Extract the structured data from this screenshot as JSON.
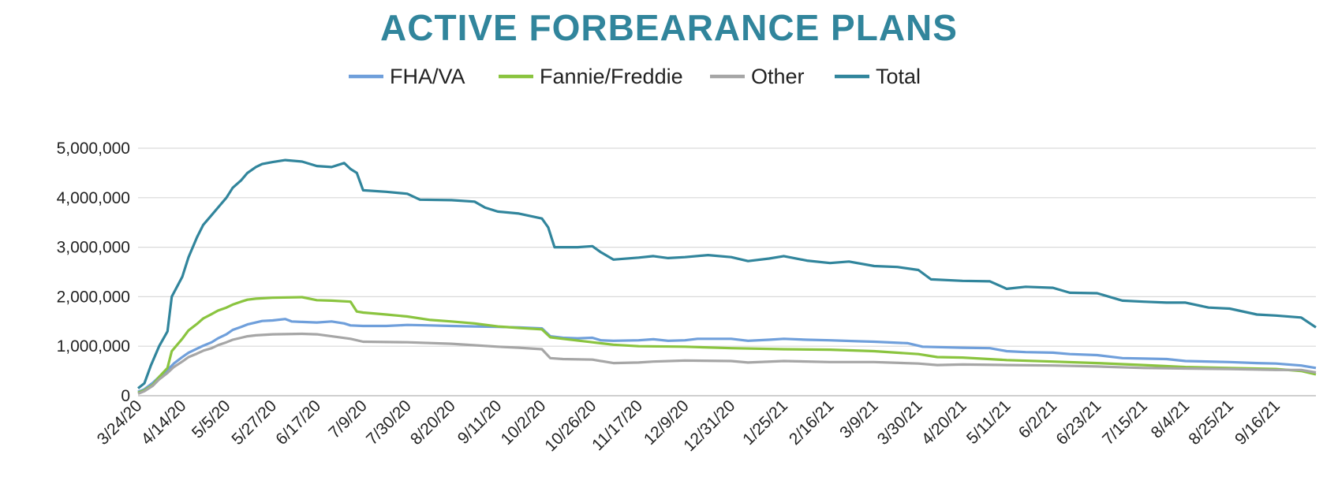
{
  "chart_data": {
    "type": "line",
    "title": "ACTIVE FORBEARANCE PLANS",
    "xlabel": "",
    "ylabel": "",
    "ylim": [
      0,
      5000000
    ],
    "y_ticks": [
      "0",
      "1,000,000",
      "2,000,000",
      "3,000,000",
      "4,000,000",
      "5,000,000"
    ],
    "grid": true,
    "legend_position": "top",
    "x_start": "3/24/20",
    "x_end": "10/5/21",
    "x_ticks": [
      "3/24/20",
      "4/14/20",
      "5/5/20",
      "5/27/20",
      "6/17/20",
      "7/9/20",
      "7/30/20",
      "8/20/20",
      "9/11/20",
      "10/2/20",
      "10/26/20",
      "11/17/20",
      "12/9/20",
      "12/31/20",
      "1/25/21",
      "2/16/21",
      "3/9/21",
      "3/30/21",
      "4/20/21",
      "5/11/21",
      "6/2/21",
      "6/23/21",
      "7/15/21",
      "8/4/21",
      "8/25/21",
      "9/16/21"
    ],
    "series": [
      {
        "name": "FHA/VA",
        "color": "#6f9fdb",
        "points": [
          [
            "3/24/20",
            80000
          ],
          [
            "3/27/20",
            130000
          ],
          [
            "3/31/20",
            260000
          ],
          [
            "4/3/20",
            380000
          ],
          [
            "4/7/20",
            520000
          ],
          [
            "4/10/20",
            650000
          ],
          [
            "4/14/20",
            780000
          ],
          [
            "4/17/20",
            870000
          ],
          [
            "4/21/20",
            950000
          ],
          [
            "4/24/20",
            1010000
          ],
          [
            "4/28/20",
            1080000
          ],
          [
            "5/1/20",
            1160000
          ],
          [
            "5/5/20",
            1240000
          ],
          [
            "5/8/20",
            1330000
          ],
          [
            "5/12/20",
            1390000
          ],
          [
            "5/15/20",
            1440000
          ],
          [
            "5/19/20",
            1480000
          ],
          [
            "5/22/20",
            1510000
          ],
          [
            "5/27/20",
            1520000
          ],
          [
            "6/2/20",
            1550000
          ],
          [
            "6/5/20",
            1500000
          ],
          [
            "6/10/20",
            1490000
          ],
          [
            "6/17/20",
            1480000
          ],
          [
            "6/24/20",
            1500000
          ],
          [
            "6/30/20",
            1460000
          ],
          [
            "7/3/20",
            1420000
          ],
          [
            "7/9/20",
            1410000
          ],
          [
            "7/20/20",
            1410000
          ],
          [
            "7/30/20",
            1430000
          ],
          [
            "8/10/20",
            1420000
          ],
          [
            "8/20/20",
            1410000
          ],
          [
            "8/31/20",
            1400000
          ],
          [
            "9/11/20",
            1390000
          ],
          [
            "9/21/20",
            1380000
          ],
          [
            "10/2/20",
            1360000
          ],
          [
            "10/6/20",
            1200000
          ],
          [
            "10/12/20",
            1170000
          ],
          [
            "10/19/20",
            1160000
          ],
          [
            "10/26/20",
            1170000
          ],
          [
            "10/30/20",
            1120000
          ],
          [
            "11/5/20",
            1110000
          ],
          [
            "11/17/20",
            1120000
          ],
          [
            "11/24/20",
            1140000
          ],
          [
            "12/1/20",
            1110000
          ],
          [
            "12/9/20",
            1120000
          ],
          [
            "12/15/20",
            1150000
          ],
          [
            "12/31/20",
            1150000
          ],
          [
            "1/8/21",
            1110000
          ],
          [
            "1/18/21",
            1130000
          ],
          [
            "1/25/21",
            1150000
          ],
          [
            "2/5/21",
            1130000
          ],
          [
            "2/16/21",
            1120000
          ],
          [
            "3/1/21",
            1100000
          ],
          [
            "3/9/21",
            1090000
          ],
          [
            "3/25/21",
            1060000
          ],
          [
            "4/1/21",
            990000
          ],
          [
            "4/20/21",
            970000
          ],
          [
            "5/3/21",
            960000
          ],
          [
            "5/11/21",
            900000
          ],
          [
            "5/20/21",
            880000
          ],
          [
            "6/2/21",
            870000
          ],
          [
            "6/10/21",
            840000
          ],
          [
            "6/23/21",
            820000
          ],
          [
            "7/5/21",
            760000
          ],
          [
            "7/15/21",
            750000
          ],
          [
            "7/26/21",
            740000
          ],
          [
            "8/4/21",
            700000
          ],
          [
            "8/25/21",
            680000
          ],
          [
            "9/7/21",
            660000
          ],
          [
            "9/16/21",
            650000
          ],
          [
            "9/28/21",
            610000
          ],
          [
            "10/5/21",
            560000
          ]
        ]
      },
      {
        "name": "Fannie/Freddie",
        "color": "#8ac43f",
        "points": [
          [
            "3/24/20",
            60000
          ],
          [
            "3/27/20",
            110000
          ],
          [
            "3/31/20",
            220000
          ],
          [
            "4/3/20",
            380000
          ],
          [
            "4/7/20",
            560000
          ],
          [
            "4/9/20",
            900000
          ],
          [
            "4/14/20",
            1150000
          ],
          [
            "4/17/20",
            1320000
          ],
          [
            "4/21/20",
            1450000
          ],
          [
            "4/24/20",
            1560000
          ],
          [
            "4/28/20",
            1650000
          ],
          [
            "5/1/20",
            1720000
          ],
          [
            "5/5/20",
            1780000
          ],
          [
            "5/8/20",
            1840000
          ],
          [
            "5/12/20",
            1900000
          ],
          [
            "5/15/20",
            1940000
          ],
          [
            "5/19/20",
            1960000
          ],
          [
            "5/27/20",
            1980000
          ],
          [
            "6/10/20",
            1990000
          ],
          [
            "6/17/20",
            1930000
          ],
          [
            "6/24/20",
            1920000
          ],
          [
            "7/3/20",
            1900000
          ],
          [
            "7/6/20",
            1700000
          ],
          [
            "7/9/20",
            1680000
          ],
          [
            "7/20/20",
            1640000
          ],
          [
            "7/30/20",
            1600000
          ],
          [
            "8/10/20",
            1530000
          ],
          [
            "8/20/20",
            1500000
          ],
          [
            "8/31/20",
            1460000
          ],
          [
            "9/11/20",
            1400000
          ],
          [
            "9/21/20",
            1370000
          ],
          [
            "10/2/20",
            1340000
          ],
          [
            "10/6/20",
            1180000
          ],
          [
            "10/12/20",
            1150000
          ],
          [
            "10/26/20",
            1080000
          ],
          [
            "11/5/20",
            1030000
          ],
          [
            "11/17/20",
            1000000
          ],
          [
            "12/9/20",
            990000
          ],
          [
            "12/31/20",
            960000
          ],
          [
            "1/25/21",
            940000
          ],
          [
            "2/16/21",
            930000
          ],
          [
            "3/9/21",
            900000
          ],
          [
            "3/30/21",
            840000
          ],
          [
            "4/8/21",
            780000
          ],
          [
            "4/20/21",
            770000
          ],
          [
            "5/11/21",
            720000
          ],
          [
            "6/2/21",
            690000
          ],
          [
            "6/23/21",
            660000
          ],
          [
            "7/15/21",
            620000
          ],
          [
            "8/4/21",
            580000
          ],
          [
            "8/25/21",
            560000
          ],
          [
            "9/16/21",
            540000
          ],
          [
            "9/28/21",
            500000
          ],
          [
            "10/5/21",
            430000
          ]
        ]
      },
      {
        "name": "Other",
        "color": "#a6a6a6",
        "points": [
          [
            "3/24/20",
            40000
          ],
          [
            "3/27/20",
            90000
          ],
          [
            "3/31/20",
            200000
          ],
          [
            "4/3/20",
            330000
          ],
          [
            "4/7/20",
            460000
          ],
          [
            "4/10/20",
            580000
          ],
          [
            "4/14/20",
            690000
          ],
          [
            "4/17/20",
            780000
          ],
          [
            "4/21/20",
            850000
          ],
          [
            "4/24/20",
            910000
          ],
          [
            "4/28/20",
            960000
          ],
          [
            "5/1/20",
            1020000
          ],
          [
            "5/5/20",
            1080000
          ],
          [
            "5/8/20",
            1130000
          ],
          [
            "5/12/20",
            1170000
          ],
          [
            "5/15/20",
            1200000
          ],
          [
            "5/19/20",
            1220000
          ],
          [
            "5/27/20",
            1240000
          ],
          [
            "6/10/20",
            1250000
          ],
          [
            "6/17/20",
            1240000
          ],
          [
            "6/24/20",
            1200000
          ],
          [
            "7/3/20",
            1150000
          ],
          [
            "7/9/20",
            1090000
          ],
          [
            "7/30/20",
            1080000
          ],
          [
            "8/20/20",
            1050000
          ],
          [
            "9/11/20",
            990000
          ],
          [
            "9/21/20",
            970000
          ],
          [
            "10/2/20",
            940000
          ],
          [
            "10/6/20",
            760000
          ],
          [
            "10/12/20",
            740000
          ],
          [
            "10/26/20",
            730000
          ],
          [
            "11/5/20",
            660000
          ],
          [
            "11/17/20",
            670000
          ],
          [
            "11/24/20",
            690000
          ],
          [
            "12/9/20",
            710000
          ],
          [
            "12/31/20",
            700000
          ],
          [
            "1/8/21",
            670000
          ],
          [
            "1/25/21",
            700000
          ],
          [
            "2/16/21",
            680000
          ],
          [
            "3/9/21",
            680000
          ],
          [
            "3/30/21",
            650000
          ],
          [
            "4/8/21",
            620000
          ],
          [
            "4/20/21",
            630000
          ],
          [
            "5/11/21",
            620000
          ],
          [
            "6/2/21",
            610000
          ],
          [
            "6/23/21",
            590000
          ],
          [
            "7/15/21",
            560000
          ],
          [
            "8/4/21",
            550000
          ],
          [
            "8/25/21",
            540000
          ],
          [
            "9/16/21",
            520000
          ],
          [
            "9/28/21",
            520000
          ],
          [
            "10/5/21",
            470000
          ]
        ]
      },
      {
        "name": "Total",
        "color": "#31859c",
        "points": [
          [
            "3/24/20",
            150000
          ],
          [
            "3/27/20",
            250000
          ],
          [
            "3/30/20",
            600000
          ],
          [
            "4/3/20",
            1000000
          ],
          [
            "4/7/20",
            1300000
          ],
          [
            "4/9/20",
            2000000
          ],
          [
            "4/14/20",
            2400000
          ],
          [
            "4/17/20",
            2800000
          ],
          [
            "4/21/20",
            3200000
          ],
          [
            "4/24/20",
            3450000
          ],
          [
            "4/28/20",
            3650000
          ],
          [
            "5/1/20",
            3800000
          ],
          [
            "5/5/20",
            4000000
          ],
          [
            "5/8/20",
            4200000
          ],
          [
            "5/12/20",
            4350000
          ],
          [
            "5/15/20",
            4500000
          ],
          [
            "5/19/20",
            4620000
          ],
          [
            "5/22/20",
            4680000
          ],
          [
            "5/27/20",
            4720000
          ],
          [
            "6/2/20",
            4760000
          ],
          [
            "6/10/20",
            4730000
          ],
          [
            "6/17/20",
            4640000
          ],
          [
            "6/24/20",
            4620000
          ],
          [
            "6/30/20",
            4700000
          ],
          [
            "7/3/20",
            4580000
          ],
          [
            "7/6/20",
            4500000
          ],
          [
            "7/9/20",
            4150000
          ],
          [
            "7/20/20",
            4120000
          ],
          [
            "7/30/20",
            4080000
          ],
          [
            "8/5/20",
            3960000
          ],
          [
            "8/20/20",
            3950000
          ],
          [
            "8/31/20",
            3920000
          ],
          [
            "9/5/20",
            3800000
          ],
          [
            "9/11/20",
            3720000
          ],
          [
            "9/21/20",
            3680000
          ],
          [
            "10/2/20",
            3580000
          ],
          [
            "10/5/20",
            3400000
          ],
          [
            "10/8/20",
            3000000
          ],
          [
            "10/19/20",
            3000000
          ],
          [
            "10/26/20",
            3020000
          ],
          [
            "10/30/20",
            2900000
          ],
          [
            "11/5/20",
            2750000
          ],
          [
            "11/17/20",
            2790000
          ],
          [
            "11/24/20",
            2820000
          ],
          [
            "12/1/20",
            2780000
          ],
          [
            "12/9/20",
            2800000
          ],
          [
            "12/20/20",
            2840000
          ],
          [
            "12/31/20",
            2800000
          ],
          [
            "1/8/21",
            2720000
          ],
          [
            "1/18/21",
            2770000
          ],
          [
            "1/25/21",
            2820000
          ],
          [
            "2/5/21",
            2730000
          ],
          [
            "2/16/21",
            2680000
          ],
          [
            "2/25/21",
            2710000
          ],
          [
            "3/9/21",
            2620000
          ],
          [
            "3/20/21",
            2600000
          ],
          [
            "3/30/21",
            2540000
          ],
          [
            "4/5/21",
            2350000
          ],
          [
            "4/20/21",
            2320000
          ],
          [
            "5/3/21",
            2310000
          ],
          [
            "5/11/21",
            2160000
          ],
          [
            "5/20/21",
            2200000
          ],
          [
            "6/2/21",
            2180000
          ],
          [
            "6/10/21",
            2080000
          ],
          [
            "6/23/21",
            2070000
          ],
          [
            "7/5/21",
            1920000
          ],
          [
            "7/15/21",
            1900000
          ],
          [
            "7/26/21",
            1880000
          ],
          [
            "8/4/21",
            1880000
          ],
          [
            "8/15/21",
            1780000
          ],
          [
            "8/25/21",
            1760000
          ],
          [
            "9/7/21",
            1640000
          ],
          [
            "9/16/21",
            1620000
          ],
          [
            "9/28/21",
            1580000
          ],
          [
            "10/5/21",
            1380000
          ]
        ]
      }
    ]
  },
  "colors": {
    "title": "#31859c",
    "grid": "#d9d9d9",
    "axis": "#bfbfbf",
    "text": "#222222"
  }
}
